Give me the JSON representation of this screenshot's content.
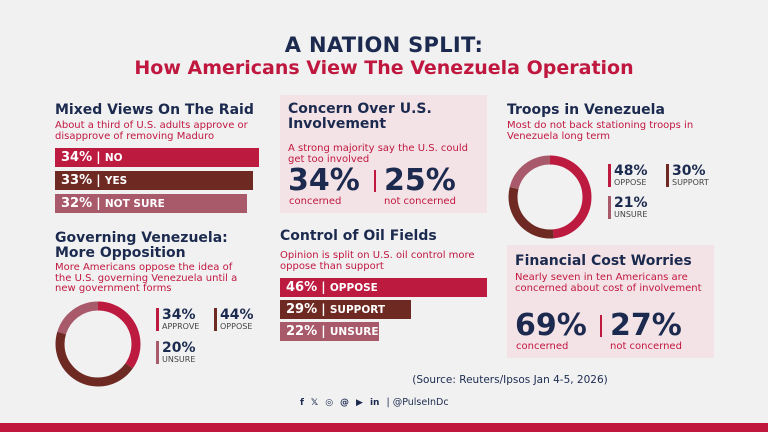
{
  "header": {
    "title": "A NATION SPLIT:",
    "subtitle": "How Americans View The Venezuela Operation"
  },
  "colors": {
    "red": "#bd1a40",
    "brown": "#6e2a22",
    "mauve": "#a8596a",
    "navy": "#1b2a4e",
    "pink_panel": "#f4e3e6"
  },
  "raid": {
    "title": "Mixed Views On The Raid",
    "subtitle": "About a third of U.S. adults approve or disapprove of removing Maduro"
  },
  "concern": {
    "title": "Concern Over U.S. Involvement",
    "subtitle": "A strong majority say the U.S. could get too involved",
    "stats": [
      {
        "value": "34%",
        "label": "concerned"
      },
      {
        "value": "25%",
        "label": "not concerned"
      }
    ]
  },
  "troops": {
    "title": "Troops in Venezuela",
    "subtitle": "Most do not back stationing troops in Venezuela long term"
  },
  "governing": {
    "title": "Governing Venezuela: More Opposition",
    "subtitle": "More Americans oppose the idea of the U.S. governing Venezuela until a new government forms"
  },
  "oil": {
    "title": "Control of Oil Fields",
    "subtitle": "Opinion is split on U.S. oil control more oppose than support"
  },
  "financial": {
    "title": "Financial Cost Worries",
    "subtitle": "Nearly seven in ten Americans are concerned about cost of involvement",
    "stats": [
      {
        "value": "69%",
        "label": "concerned"
      },
      {
        "value": "27%",
        "label": "not concerned"
      }
    ]
  },
  "footer": {
    "source": "(Source: Reuters/Ipsos Jan 4-5, 2026)",
    "handle": "| @PulseInDc",
    "icons": [
      "facebook-icon",
      "x-icon",
      "instagram-icon",
      "threads-icon",
      "youtube-icon",
      "linkedin-icon"
    ]
  },
  "chart_data": [
    {
      "type": "bar",
      "title": "Mixed Views On The Raid",
      "categories": [
        "NO",
        "YES",
        "NOT SURE"
      ],
      "values": [
        34,
        33,
        32
      ],
      "labels": [
        "34%",
        "33%",
        "32%"
      ]
    },
    {
      "type": "pie",
      "title": "Troops in Venezuela",
      "categories": [
        "OPPOSE",
        "SUPPORT",
        "UNSURE"
      ],
      "values": [
        48,
        30,
        21
      ],
      "labels": [
        "48%",
        "30%",
        "21%"
      ]
    },
    {
      "type": "pie",
      "title": "Governing Venezuela: More Opposition",
      "categories": [
        "APPROVE",
        "OPPOSE",
        "UNSURE"
      ],
      "values": [
        34,
        44,
        20
      ],
      "labels": [
        "34%",
        "44%",
        "20%"
      ]
    },
    {
      "type": "bar",
      "title": "Control of Oil Fields",
      "categories": [
        "OPPOSE",
        "SUPPORT",
        "UNSURE"
      ],
      "values": [
        46,
        29,
        22
      ],
      "labels": [
        "46%",
        "29%",
        "22%"
      ]
    }
  ]
}
